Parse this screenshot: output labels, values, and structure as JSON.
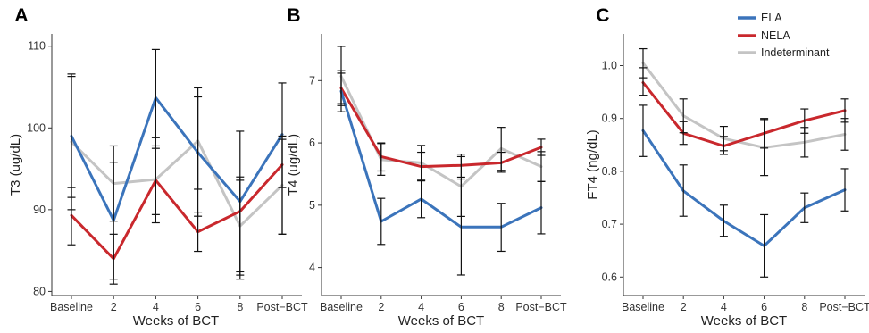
{
  "colors": {
    "ELA": "#3b74bb",
    "NELA": "#c9282d",
    "Indeterminant": "#c4c4c4",
    "error_bar": "#111111"
  },
  "legend": [
    "ELA",
    "NELA",
    "Indeterminant"
  ],
  "chart_data": [
    {
      "type": "line",
      "panel": "A",
      "xlabel": "Weeks of BCT",
      "ylabel": "T3 (ug/dL)",
      "categories": [
        "Baseline",
        "2",
        "4",
        "6",
        "8",
        "Post−BCT"
      ],
      "yticks": [
        80,
        90,
        100,
        110
      ],
      "ylim": [
        79.5,
        111.5
      ],
      "series": [
        {
          "name": "ELA",
          "values": [
            99.0,
            88.7,
            103.7,
            97.0,
            91.0,
            99.2
          ],
          "lower": [
            91.5,
            81.5,
            97.5,
            89.2,
            82.4,
            92.7
          ],
          "upper": [
            106.6,
            95.8,
            109.6,
            104.9,
            99.6,
            105.5
          ]
        },
        {
          "name": "NELA",
          "values": [
            89.3,
            84.0,
            93.6,
            87.3,
            89.8,
            95.5
          ],
          "lower": [
            85.7,
            80.9,
            89.4,
            84.9,
            81.5,
            87.0
          ],
          "upper": [
            92.7,
            87.0,
            97.8,
            89.7,
            94.0,
            98.6
          ]
        },
        {
          "name": "Indeterminant",
          "values": [
            98.3,
            93.2,
            93.7,
            98.4,
            88.0,
            93.0
          ],
          "lower": [
            90.0,
            88.6,
            88.4,
            92.5,
            82.0,
            87.0
          ],
          "upper": [
            106.3,
            97.8,
            98.8,
            103.8,
            93.6,
            99.0
          ]
        }
      ]
    },
    {
      "type": "line",
      "panel": "B",
      "xlabel": "Weeks of BCT",
      "ylabel": "T4 (ug/dL)",
      "categories": [
        "Baseline",
        "2",
        "4",
        "6",
        "8",
        "Post−BCT"
      ],
      "yticks": [
        4,
        5,
        6,
        7
      ],
      "ylim": [
        3.55,
        7.75
      ],
      "series": [
        {
          "name": "ELA",
          "values": [
            6.83,
            4.74,
            5.1,
            4.65,
            4.65,
            4.96
          ],
          "lower": [
            6.5,
            4.37,
            4.8,
            3.88,
            4.26,
            4.54
          ],
          "upper": [
            7.16,
            5.11,
            5.4,
            5.42,
            5.03,
            5.38
          ]
        },
        {
          "name": "NELA",
          "values": [
            6.88,
            5.78,
            5.62,
            5.64,
            5.68,
            5.93
          ],
          "lower": [
            6.63,
            5.55,
            5.39,
            5.45,
            5.53,
            5.8
          ],
          "upper": [
            7.12,
            6.0,
            5.85,
            5.82,
            5.85,
            6.06
          ]
        },
        {
          "name": "Indeterminant",
          "values": [
            7.07,
            5.73,
            5.68,
            5.3,
            5.91,
            5.62
          ],
          "lower": [
            6.6,
            5.48,
            5.4,
            4.82,
            5.56,
            5.38
          ],
          "upper": [
            7.55,
            5.99,
            5.96,
            5.78,
            6.25,
            5.86
          ]
        }
      ]
    },
    {
      "type": "line",
      "panel": "C",
      "xlabel": "Weeks of BCT",
      "ylabel": "FT4 (ng/dL)",
      "categories": [
        "Baseline",
        "2",
        "4",
        "6",
        "8",
        "Post−BCT"
      ],
      "yticks": [
        "0.6",
        "0.7",
        "0.8",
        "0.9",
        "1.0"
      ],
      "ylim": [
        0.565,
        1.06
      ],
      "series": [
        {
          "name": "ELA",
          "values": [
            0.877,
            0.763,
            0.706,
            0.659,
            0.731,
            0.765
          ],
          "lower": [
            0.828,
            0.715,
            0.677,
            0.6,
            0.703,
            0.725
          ],
          "upper": [
            0.925,
            0.812,
            0.736,
            0.718,
            0.759,
            0.805
          ]
        },
        {
          "name": "NELA",
          "values": [
            0.968,
            0.872,
            0.848,
            0.872,
            0.896,
            0.915
          ],
          "lower": [
            0.944,
            0.851,
            0.832,
            0.844,
            0.872,
            0.893
          ],
          "upper": [
            0.996,
            0.894,
            0.866,
            0.9,
            0.918,
            0.937
          ]
        },
        {
          "name": "Indeterminant",
          "values": [
            1.005,
            0.905,
            0.862,
            0.845,
            0.855,
            0.87
          ],
          "lower": [
            0.977,
            0.873,
            0.839,
            0.792,
            0.827,
            0.84
          ],
          "upper": [
            1.032,
            0.937,
            0.885,
            0.898,
            0.883,
            0.9
          ]
        }
      ]
    }
  ]
}
